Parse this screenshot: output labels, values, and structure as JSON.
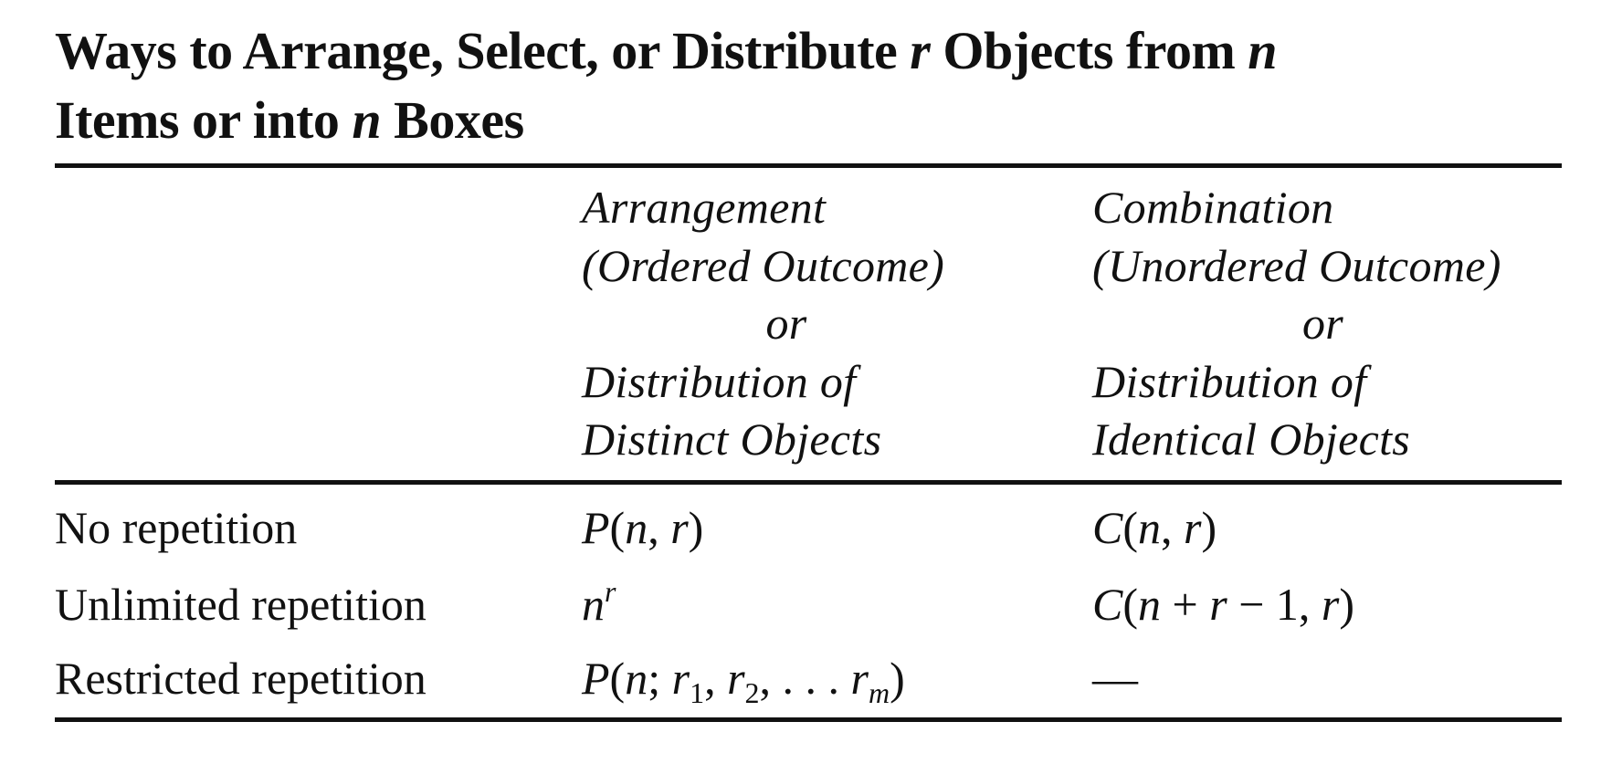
{
  "title": {
    "part1": "Ways to Arrange, Select, or Distribute ",
    "var_r": "r",
    "part2": " Objects from ",
    "var_n1": "n",
    "part3": "Items or into ",
    "var_n2": "n",
    "part4": " Boxes"
  },
  "columns": {
    "arrangement": {
      "line1": "Arrangement",
      "line2": "(Ordered Outcome)",
      "line3": "or",
      "line4": "Distribution of",
      "line5": "Distinct Objects"
    },
    "combination": {
      "line1": "Combination",
      "line2": "(Unordered Outcome)",
      "line3": "or",
      "line4": "Distribution of",
      "line5": "Identical Objects"
    }
  },
  "rows": [
    {
      "label": "No repetition",
      "arrangement": {
        "fn": "P",
        "open": "(",
        "a": "n",
        "sep": ", ",
        "b": "r",
        "close": ")"
      },
      "combination": {
        "fn": "C",
        "open": "(",
        "a": "n",
        "sep": ", ",
        "b": "r",
        "close": ")"
      }
    },
    {
      "label": "Unlimited repetition",
      "arrangement": {
        "base": "n",
        "exp": "r"
      },
      "combination": {
        "fn": "C",
        "open": "(",
        "a": "n",
        "plus": " + ",
        "b": "r",
        "minus": " − 1, ",
        "c": "r",
        "close": ")"
      }
    },
    {
      "label": "Restricted repetition",
      "arrangement": {
        "fn": "P",
        "open": "(",
        "a": "n",
        "semi": "; ",
        "r1": "r",
        "s1": "1",
        "c1": ", ",
        "r2": "r",
        "s2": "2",
        "c2": ", . . . ",
        "rm": "r",
        "sm": "m",
        "close": ")"
      },
      "combination": {
        "text": "—"
      }
    }
  ]
}
